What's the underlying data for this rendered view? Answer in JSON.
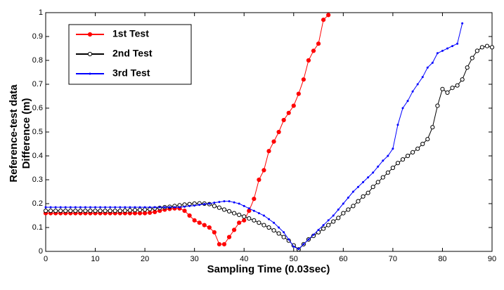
{
  "chart_data": {
    "type": "line",
    "xlabel": "Sampling Time (0.03sec)",
    "ylabel": [
      "Reference-test data",
      "Difference (m)"
    ],
    "xlim": [
      0,
      90
    ],
    "ylim": [
      0,
      1
    ],
    "xticks": [
      0,
      10,
      20,
      30,
      40,
      50,
      60,
      70,
      80,
      90
    ],
    "yticks": [
      0,
      0.1,
      0.2,
      0.3,
      0.4,
      0.5,
      0.6,
      0.7,
      0.8,
      0.9,
      1
    ],
    "legend": "upper left",
    "x": [
      0,
      1,
      2,
      3,
      4,
      5,
      6,
      7,
      8,
      9,
      10,
      11,
      12,
      13,
      14,
      15,
      16,
      17,
      18,
      19,
      20,
      21,
      22,
      23,
      24,
      25,
      26,
      27,
      28,
      29,
      30,
      31,
      32,
      33,
      34,
      35,
      36,
      37,
      38,
      39,
      40,
      41,
      42,
      43,
      44,
      45,
      46,
      47,
      48,
      49,
      50,
      51,
      52,
      53,
      54,
      55,
      56,
      57,
      58,
      59,
      60,
      61,
      62,
      63,
      64,
      65,
      66,
      67,
      68,
      69,
      70,
      71,
      72,
      73,
      74,
      75,
      76,
      77,
      78,
      79,
      80,
      81,
      82,
      83,
      84,
      85,
      86,
      87,
      88,
      89,
      90
    ],
    "series": [
      {
        "name": "1st Test",
        "color": "#ff0000",
        "marker": "filled-circle",
        "values": [
          0.16,
          0.16,
          0.16,
          0.16,
          0.16,
          0.16,
          0.16,
          0.16,
          0.16,
          0.16,
          0.16,
          0.16,
          0.16,
          0.16,
          0.16,
          0.16,
          0.16,
          0.16,
          0.16,
          0.16,
          0.16,
          0.162,
          0.165,
          0.17,
          0.175,
          0.178,
          0.18,
          0.18,
          0.17,
          0.15,
          0.13,
          0.12,
          0.11,
          0.1,
          0.08,
          0.03,
          0.03,
          0.06,
          0.09,
          0.12,
          0.13,
          0.17,
          0.22,
          0.3,
          0.34,
          0.42,
          0.46,
          0.5,
          0.55,
          0.58,
          0.61,
          0.66,
          0.72,
          0.8,
          0.84,
          0.87,
          0.97,
          0.99,
          null,
          null,
          null,
          null,
          null,
          null,
          null,
          null,
          null,
          null,
          null,
          null,
          null,
          null,
          null,
          null,
          null,
          null,
          null,
          null,
          null,
          null,
          null,
          null,
          null,
          null,
          null,
          null,
          null,
          null,
          null,
          null,
          null
        ]
      },
      {
        "name": "2nd Test",
        "color": "#000000",
        "marker": "open-circle",
        "values": [
          0.17,
          0.17,
          0.17,
          0.17,
          0.17,
          0.17,
          0.17,
          0.17,
          0.17,
          0.17,
          0.17,
          0.17,
          0.17,
          0.17,
          0.17,
          0.17,
          0.171,
          0.172,
          0.173,
          0.174,
          0.175,
          0.177,
          0.18,
          0.182,
          0.185,
          0.187,
          0.19,
          0.193,
          0.196,
          0.198,
          0.2,
          0.201,
          0.2,
          0.198,
          0.19,
          0.183,
          0.175,
          0.168,
          0.16,
          0.153,
          0.146,
          0.138,
          0.13,
          0.12,
          0.11,
          0.1,
          0.088,
          0.075,
          0.06,
          0.045,
          0.025,
          0.008,
          0.03,
          0.05,
          0.065,
          0.08,
          0.095,
          0.11,
          0.125,
          0.14,
          0.16,
          0.175,
          0.19,
          0.21,
          0.23,
          0.245,
          0.27,
          0.29,
          0.31,
          0.33,
          0.35,
          0.37,
          0.385,
          0.4,
          0.415,
          0.43,
          0.45,
          0.47,
          0.52,
          0.61,
          0.68,
          0.665,
          0.685,
          0.695,
          0.72,
          0.77,
          0.81,
          0.84,
          0.855,
          0.86,
          0.855
        ]
      },
      {
        "name": "3rd Test",
        "color": "#0000ff",
        "marker": "dot",
        "values": [
          0.185,
          0.185,
          0.185,
          0.185,
          0.185,
          0.185,
          0.185,
          0.185,
          0.185,
          0.185,
          0.185,
          0.185,
          0.185,
          0.185,
          0.185,
          0.185,
          0.185,
          0.185,
          0.185,
          0.185,
          0.185,
          0.185,
          0.185,
          0.185,
          0.185,
          0.185,
          0.185,
          0.185,
          0.187,
          0.19,
          0.192,
          0.195,
          0.198,
          0.2,
          0.204,
          0.207,
          0.21,
          0.21,
          0.205,
          0.2,
          0.19,
          0.18,
          0.17,
          0.16,
          0.15,
          0.135,
          0.12,
          0.1,
          0.08,
          0.05,
          0.02,
          0.01,
          0.03,
          0.05,
          0.07,
          0.09,
          0.11,
          0.13,
          0.15,
          0.175,
          0.2,
          0.225,
          0.25,
          0.27,
          0.29,
          0.31,
          0.33,
          0.355,
          0.38,
          0.4,
          0.43,
          0.53,
          0.6,
          0.63,
          0.67,
          0.7,
          0.73,
          0.77,
          0.79,
          0.83,
          0.84,
          0.85,
          0.86,
          0.87,
          0.955,
          null,
          null,
          null,
          null,
          null,
          null
        ]
      }
    ]
  }
}
